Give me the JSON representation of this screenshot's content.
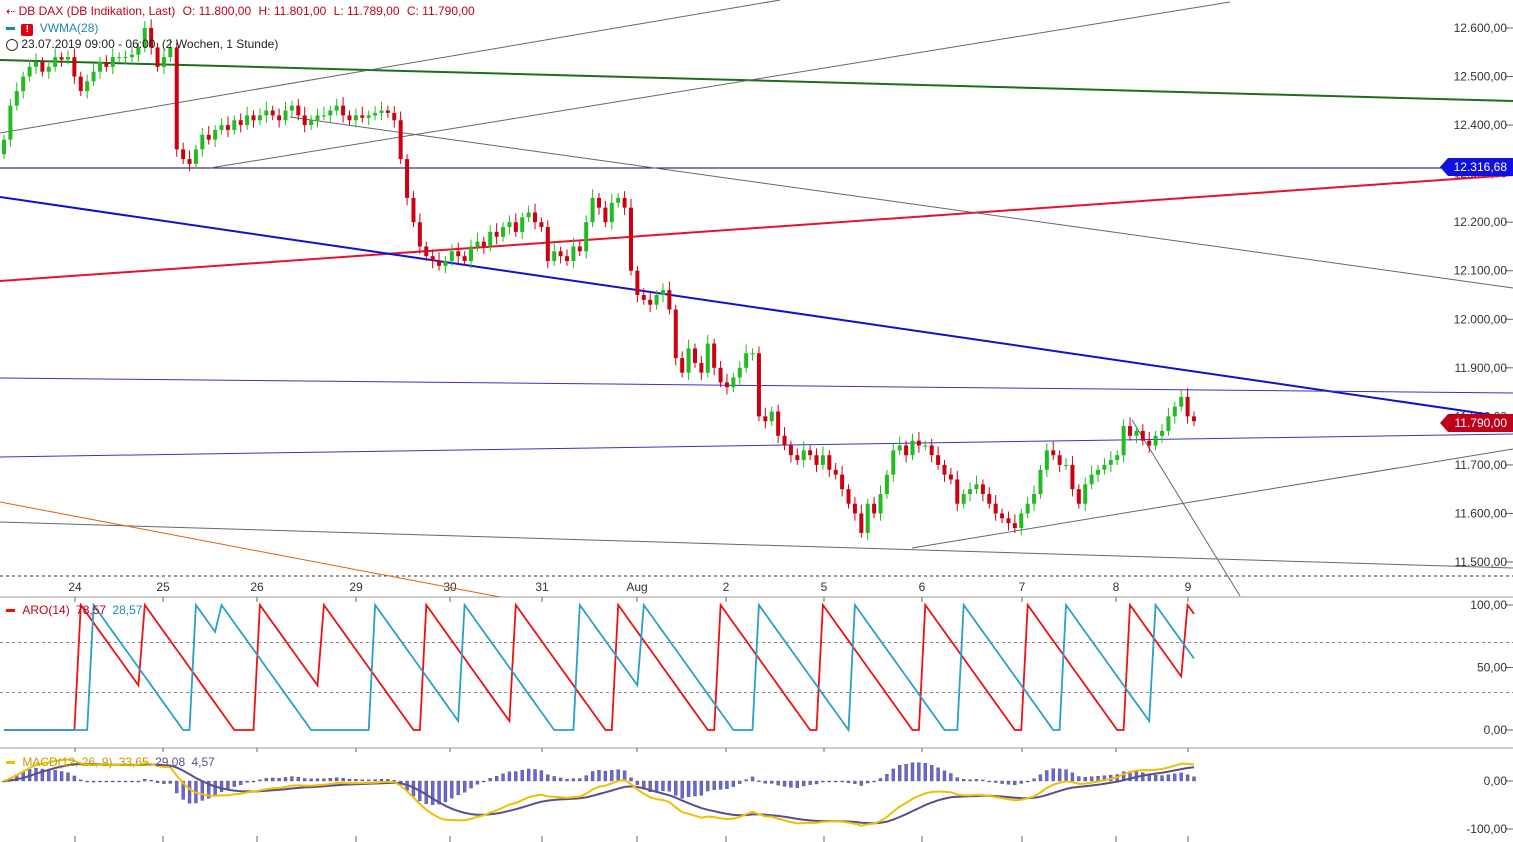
{
  "header": {
    "symbol_line": "DB DAX (DB Indikation, Last)",
    "o_label": "O: 11.800,00",
    "h_label": "H: 11.801,00",
    "l_label": "L: 11.789,00",
    "c_label": "C: 11.790,00",
    "vwma_label": "VWMA(28)",
    "period_label": "23.07.2019 09:00 - 06:00",
    "range_label": "(2 Wochen, 1 Stunde)"
  },
  "price_axis": {
    "ticks": [
      "12.600,00",
      "12.500,00",
      "12.400,00",
      "12.300,00",
      "12.200,00",
      "12.100,00",
      "12.000,00",
      "11.900,00",
      "11.800,00",
      "11.700,00",
      "11.600,00",
      "11.500,00"
    ],
    "tick_values": [
      12600,
      12500,
      12400,
      12300,
      12200,
      12100,
      12000,
      11900,
      11800,
      11700,
      11600,
      11500
    ],
    "badge_level": "12.316,68",
    "badge_last": "11.790,00",
    "colors": {
      "level": "#1010e0",
      "last": "#c0001a"
    }
  },
  "x_axis": {
    "labels": [
      "24",
      "25",
      "26",
      "29",
      "30",
      "31",
      "Aug",
      "2",
      "5",
      "6",
      "7",
      "8",
      "9"
    ]
  },
  "aroon": {
    "label": "ARO(14)",
    "up_value": "78,57",
    "down_value": "28,57",
    "ticks": [
      "100,00",
      "50,00",
      "0,00"
    ],
    "colors": {
      "up": "#ee1111",
      "down": "#2aa0c8"
    }
  },
  "macd": {
    "label": "MACD(12, 26, 9)",
    "macd_value": "33,65",
    "signal_value": "29,08",
    "hist_value": "4,57",
    "ticks": [
      "00,00",
      "0,00",
      "-100,00"
    ],
    "colors": {
      "macd": "#f0c000",
      "signal": "#5a4e8a",
      "hist": "#6666dd"
    }
  },
  "chart_data": {
    "type": "candlestick",
    "title": "DB DAX (DB Indikation, Last)",
    "timeframe": "1 Stunde",
    "ylim": [
      11480,
      12650
    ],
    "ohlc_last": {
      "open": 11800,
      "high": 11801,
      "low": 11789,
      "close": 11790
    },
    "horizontal_levels": [
      12316.68
    ],
    "closes": [
      12370,
      12440,
      12470,
      12500,
      12520,
      12530,
      12510,
      12520,
      12540,
      12535,
      12540,
      12500,
      12470,
      12490,
      12510,
      12530,
      12520,
      12540,
      12540,
      12540,
      12545,
      12560,
      12600,
      12560,
      12520,
      12540,
      12560,
      12350,
      12330,
      12320,
      12350,
      12380,
      12370,
      12390,
      12400,
      12390,
      12410,
      12400,
      12420,
      12410,
      12420,
      12430,
      12420,
      12410,
      12430,
      12440,
      12420,
      12400,
      12410,
      12420,
      12420,
      12430,
      12440,
      12420,
      12410,
      12420,
      12415,
      12420,
      12425,
      12430,
      12425,
      12410,
      12330,
      12250,
      12200,
      12150,
      12130,
      12120,
      12110,
      12120,
      12140,
      12130,
      12120,
      12150,
      12160,
      12150,
      12180,
      12170,
      12190,
      12200,
      12180,
      12210,
      12220,
      12200,
      12190,
      12120,
      12140,
      12130,
      12120,
      12150,
      12140,
      12200,
      12250,
      12230,
      12200,
      12240,
      12250,
      12230,
      12100,
      12050,
      12040,
      12030,
      12050,
      12060,
      12020,
      11920,
      11890,
      11940,
      11910,
      11890,
      11950,
      11900,
      11870,
      11860,
      11880,
      11900,
      11930,
      11930,
      11800,
      11790,
      11810,
      11760,
      11740,
      11720,
      11710,
      11730,
      11720,
      11700,
      11720,
      11690,
      11680,
      11650,
      11620,
      11600,
      11560,
      11620,
      11600,
      11640,
      11680,
      11730,
      11740,
      11720,
      11750,
      11740,
      11740,
      11720,
      11700,
      11680,
      11670,
      11620,
      11640,
      11650,
      11660,
      11640,
      11620,
      11600,
      11590,
      11580,
      11570,
      11600,
      11620,
      11640,
      11690,
      11730,
      11720,
      11700,
      11700,
      11650,
      11620,
      11660,
      11680,
      11690,
      11700,
      11710,
      11720,
      11780,
      11760,
      11770,
      11750,
      11740,
      11760,
      11770,
      11800,
      11820,
      11840,
      11800,
      11790
    ],
    "overlay_lines": "trendlines (green, red, blue, grey)",
    "subcharts": [
      {
        "name": "ARO(14)",
        "series": [
          {
            "name": "Aroon Up",
            "last": 78.57
          },
          {
            "name": "Aroon Down",
            "last": 28.57
          }
        ],
        "ylim": [
          0,
          100
        ]
      },
      {
        "name": "MACD(12, 26, 9)",
        "series": [
          {
            "name": "MACD",
            "last": 33.65
          },
          {
            "name": "Signal",
            "last": 29.08
          },
          {
            "name": "Histogram",
            "last": 4.57
          }
        ]
      }
    ],
    "x_labels": [
      "24",
      "25",
      "26",
      "29",
      "30",
      "31",
      "Aug",
      "2",
      "5",
      "6",
      "7",
      "8",
      "9"
    ]
  }
}
